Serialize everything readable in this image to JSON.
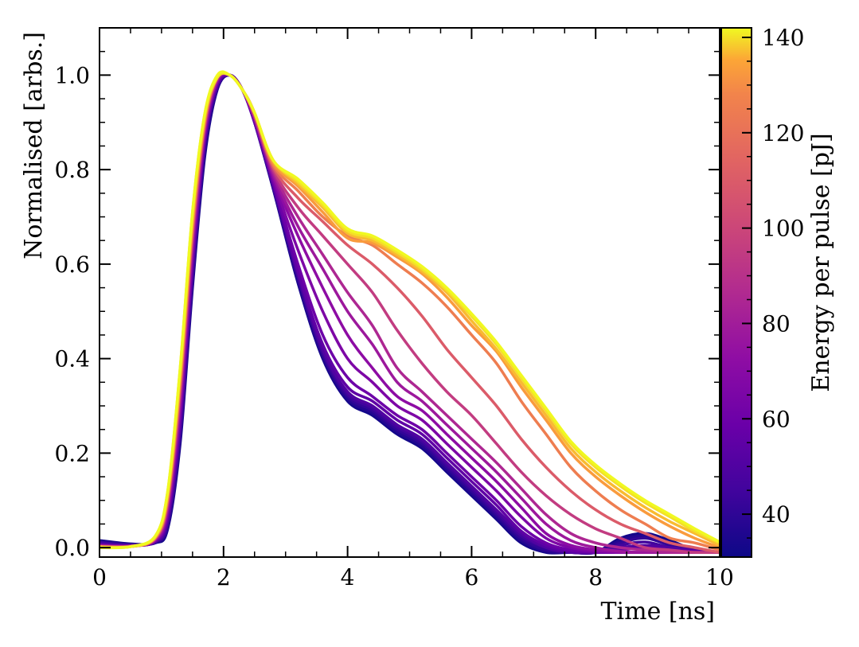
{
  "chart_data": {
    "type": "line",
    "xlabel": "Time [ns]",
    "ylabel": "Normalised [arbs.]",
    "xlim": [
      0,
      10
    ],
    "ylim": [
      -0.02,
      1.1
    ],
    "x_ticks": [
      0,
      2,
      4,
      6,
      8,
      10
    ],
    "x_tick_labels": [
      "0",
      "2",
      "4",
      "6",
      "8",
      "10"
    ],
    "y_ticks": [
      0.0,
      0.2,
      0.4,
      0.6,
      0.8,
      1.0
    ],
    "y_tick_labels": [
      "0.0",
      "0.2",
      "0.4",
      "0.6",
      "0.8",
      "1.0"
    ],
    "grid": false,
    "colormap": "plasma",
    "colorbar": {
      "label": "Energy per pulse [pJ]",
      "range": [
        31,
        142
      ],
      "ticks": [
        40,
        60,
        80,
        100,
        120,
        140
      ],
      "tick_labels": [
        "40",
        "60",
        "80",
        "100",
        "120",
        "140"
      ]
    },
    "x": [
      0,
      0.5,
      0.9,
      1.1,
      1.3,
      1.5,
      1.7,
      1.9,
      2.1,
      2.3,
      2.5,
      2.8,
      3.2,
      3.6,
      4.0,
      4.4,
      4.8,
      5.2,
      5.6,
      6.0,
      6.4,
      6.8,
      7.2,
      7.6,
      8.0,
      8.4,
      8.8,
      9.2,
      9.6,
      10.0
    ],
    "series": [
      {
        "energy": 33,
        "values": [
          0.015,
          0.008,
          0.01,
          0.04,
          0.22,
          0.55,
          0.83,
          0.97,
          1.0,
          0.97,
          0.9,
          0.76,
          0.56,
          0.4,
          0.31,
          0.28,
          0.24,
          0.21,
          0.16,
          0.11,
          0.06,
          0.01,
          -0.01,
          -0.01,
          -0.01,
          0.02,
          0.03,
          0.015,
          -0.005,
          -0.01
        ]
      },
      {
        "energy": 37,
        "values": [
          0.013,
          0.007,
          0.011,
          0.045,
          0.23,
          0.56,
          0.84,
          0.97,
          1.0,
          0.97,
          0.9,
          0.76,
          0.565,
          0.405,
          0.315,
          0.285,
          0.245,
          0.215,
          0.165,
          0.115,
          0.065,
          0.015,
          -0.008,
          -0.01,
          -0.01,
          0.015,
          0.025,
          0.01,
          -0.005,
          -0.01
        ]
      },
      {
        "energy": 41,
        "values": [
          0.012,
          0.006,
          0.011,
          0.05,
          0.24,
          0.57,
          0.85,
          0.975,
          1.0,
          0.97,
          0.9,
          0.765,
          0.57,
          0.41,
          0.32,
          0.29,
          0.25,
          0.22,
          0.17,
          0.12,
          0.07,
          0.02,
          -0.005,
          -0.01,
          -0.01,
          0.01,
          0.02,
          0.005,
          -0.005,
          -0.01
        ]
      },
      {
        "energy": 45,
        "values": [
          0.01,
          0.005,
          0.012,
          0.055,
          0.25,
          0.58,
          0.855,
          0.975,
          1.0,
          0.97,
          0.9,
          0.765,
          0.575,
          0.415,
          0.325,
          0.295,
          0.255,
          0.225,
          0.175,
          0.125,
          0.075,
          0.025,
          0.0,
          -0.01,
          -0.01,
          0.005,
          0.012,
          0.0,
          -0.005,
          -0.01
        ]
      },
      {
        "energy": 50,
        "values": [
          0.008,
          0.005,
          0.012,
          0.06,
          0.26,
          0.59,
          0.86,
          0.98,
          1.0,
          0.97,
          0.9,
          0.77,
          0.58,
          0.42,
          0.33,
          0.3,
          0.26,
          0.23,
          0.18,
          0.13,
          0.08,
          0.03,
          0.0,
          -0.01,
          -0.01,
          0.0,
          0.005,
          0.0,
          -0.005,
          -0.01
        ]
      },
      {
        "energy": 55,
        "values": [
          0.006,
          0.004,
          0.013,
          0.065,
          0.27,
          0.6,
          0.865,
          0.98,
          1.0,
          0.97,
          0.9,
          0.77,
          0.585,
          0.43,
          0.34,
          0.31,
          0.27,
          0.24,
          0.19,
          0.14,
          0.09,
          0.035,
          0.005,
          -0.008,
          -0.01,
          -0.005,
          0.0,
          -0.005,
          -0.008,
          -0.01
        ]
      },
      {
        "energy": 60,
        "values": [
          0.005,
          0.004,
          0.014,
          0.07,
          0.28,
          0.61,
          0.87,
          0.985,
          1.0,
          0.97,
          0.905,
          0.775,
          0.6,
          0.45,
          0.36,
          0.32,
          0.28,
          0.25,
          0.2,
          0.15,
          0.1,
          0.045,
          0.01,
          -0.005,
          -0.01,
          -0.01,
          -0.01,
          -0.01,
          -0.01,
          -0.01
        ]
      },
      {
        "energy": 66,
        "values": [
          0.005,
          0.004,
          0.015,
          0.075,
          0.29,
          0.62,
          0.875,
          0.985,
          1.0,
          0.97,
          0.905,
          0.78,
          0.63,
          0.5,
          0.4,
          0.35,
          0.3,
          0.27,
          0.22,
          0.17,
          0.12,
          0.065,
          0.02,
          0.0,
          -0.008,
          -0.01,
          -0.01,
          -0.01,
          -0.01,
          -0.01
        ]
      },
      {
        "energy": 72,
        "values": [
          0.004,
          0.003,
          0.016,
          0.08,
          0.3,
          0.63,
          0.88,
          0.99,
          1.0,
          0.97,
          0.91,
          0.785,
          0.66,
          0.55,
          0.45,
          0.38,
          0.32,
          0.29,
          0.24,
          0.19,
          0.14,
          0.085,
          0.03,
          0.005,
          -0.005,
          -0.01,
          -0.01,
          -0.01,
          -0.01,
          -0.01
        ]
      },
      {
        "energy": 78,
        "values": [
          0.003,
          0.003,
          0.017,
          0.085,
          0.31,
          0.64,
          0.885,
          0.99,
          1.0,
          0.97,
          0.91,
          0.79,
          0.68,
          0.59,
          0.5,
          0.43,
          0.35,
          0.31,
          0.26,
          0.21,
          0.16,
          0.105,
          0.05,
          0.015,
          0.0,
          -0.008,
          -0.01,
          -0.01,
          -0.01,
          -0.01
        ]
      },
      {
        "energy": 85,
        "values": [
          0.003,
          0.003,
          0.018,
          0.09,
          0.32,
          0.65,
          0.89,
          0.99,
          1.0,
          0.97,
          0.91,
          0.795,
          0.7,
          0.62,
          0.54,
          0.47,
          0.38,
          0.33,
          0.28,
          0.23,
          0.18,
          0.125,
          0.07,
          0.03,
          0.01,
          0.0,
          -0.005,
          -0.01,
          -0.01,
          -0.01
        ]
      },
      {
        "energy": 95,
        "values": [
          0.003,
          0.003,
          0.019,
          0.095,
          0.33,
          0.66,
          0.895,
          0.995,
          1.0,
          0.97,
          0.915,
          0.8,
          0.72,
          0.66,
          0.6,
          0.54,
          0.46,
          0.39,
          0.33,
          0.28,
          0.22,
          0.16,
          0.11,
          0.07,
          0.04,
          0.02,
          0.0,
          -0.005,
          -0.01,
          -0.01
        ]
      },
      {
        "energy": 110,
        "values": [
          0.002,
          0.002,
          0.02,
          0.1,
          0.34,
          0.67,
          0.9,
          0.995,
          1.0,
          0.97,
          0.915,
          0.805,
          0.74,
          0.69,
          0.64,
          0.6,
          0.55,
          0.49,
          0.42,
          0.36,
          0.3,
          0.23,
          0.17,
          0.12,
          0.08,
          0.05,
          0.03,
          0.01,
          0.0,
          -0.01
        ]
      },
      {
        "energy": 125,
        "values": [
          0.002,
          0.002,
          0.021,
          0.105,
          0.35,
          0.68,
          0.905,
          0.995,
          1.0,
          0.97,
          0.92,
          0.81,
          0.755,
          0.7,
          0.66,
          0.64,
          0.6,
          0.56,
          0.51,
          0.45,
          0.39,
          0.31,
          0.24,
          0.17,
          0.12,
          0.08,
          0.05,
          0.02,
          0.01,
          -0.005
        ]
      },
      {
        "energy": 133,
        "values": [
          0.002,
          0.002,
          0.022,
          0.11,
          0.36,
          0.69,
          0.91,
          0.995,
          1.0,
          0.97,
          0.92,
          0.815,
          0.765,
          0.71,
          0.655,
          0.645,
          0.615,
          0.58,
          0.53,
          0.47,
          0.415,
          0.34,
          0.27,
          0.2,
          0.15,
          0.11,
          0.075,
          0.045,
          0.02,
          0.0
        ]
      },
      {
        "energy": 137,
        "values": [
          0.001,
          0.002,
          0.023,
          0.115,
          0.37,
          0.7,
          0.915,
          0.995,
          1.0,
          0.97,
          0.92,
          0.82,
          0.77,
          0.72,
          0.665,
          0.65,
          0.62,
          0.585,
          0.54,
          0.48,
          0.42,
          0.35,
          0.28,
          0.21,
          0.16,
          0.12,
          0.085,
          0.055,
          0.03,
          0.005
        ]
      },
      {
        "energy": 140,
        "values": [
          0.0,
          0.002,
          0.024,
          0.12,
          0.38,
          0.71,
          0.92,
          0.995,
          1.0,
          0.97,
          0.92,
          0.82,
          0.775,
          0.725,
          0.67,
          0.655,
          0.625,
          0.59,
          0.545,
          0.49,
          0.43,
          0.36,
          0.29,
          0.22,
          0.17,
          0.13,
          0.095,
          0.065,
          0.035,
          0.01
        ]
      },
      {
        "energy": 142,
        "values": [
          0.0,
          0.002,
          0.025,
          0.12,
          0.38,
          0.71,
          0.92,
          1.0,
          1.0,
          0.97,
          0.92,
          0.82,
          0.78,
          0.73,
          0.675,
          0.66,
          0.63,
          0.595,
          0.55,
          0.495,
          0.435,
          0.365,
          0.295,
          0.225,
          0.175,
          0.135,
          0.1,
          0.07,
          0.04,
          0.012
        ]
      }
    ]
  }
}
